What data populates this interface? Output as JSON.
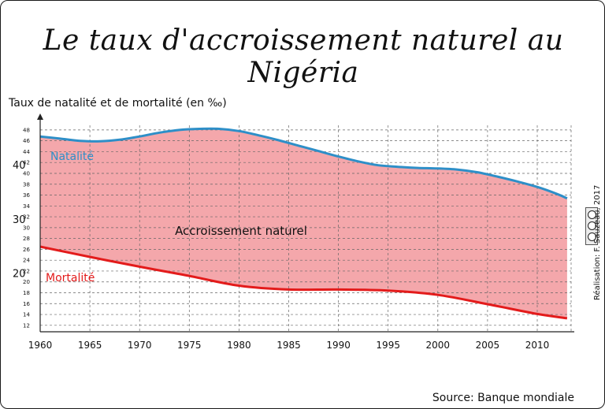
{
  "chart_data": {
    "type": "area",
    "title": "Le taux d'accroissement naturel au Nigéria",
    "ylabel": "Taux de natalité et de mortalité (en ‰)",
    "source": "Source: Banque mondiale",
    "credit": "Réalisation: F. Sauzeau, 2017",
    "xlim": [
      1960,
      2013
    ],
    "ylim": [
      11,
      49
    ],
    "x_ticks": [
      1960,
      1965,
      1970,
      1975,
      1980,
      1985,
      1990,
      1995,
      2000,
      2005,
      2010
    ],
    "y_ticks": [
      12,
      14,
      16,
      18,
      20,
      22,
      24,
      26,
      28,
      30,
      32,
      34,
      36,
      38,
      40,
      42,
      44,
      46,
      48
    ],
    "y_ticks_large": [
      20,
      30,
      40
    ],
    "fill_label": "Accroissement naturel",
    "series": [
      {
        "name": "Natalité",
        "color": "#2e8fc8",
        "x": [
          1960,
          1962,
          1964,
          1966,
          1968,
          1970,
          1972,
          1974,
          1976,
          1978,
          1980,
          1982,
          1984,
          1986,
          1988,
          1990,
          1992,
          1994,
          1996,
          1998,
          2000,
          2002,
          2004,
          2006,
          2008,
          2010,
          2012,
          2013
        ],
        "y": [
          46.8,
          46.4,
          46.0,
          45.9,
          46.2,
          46.8,
          47.5,
          48.0,
          48.2,
          48.2,
          47.8,
          47.0,
          46.1,
          45.1,
          44.1,
          43.1,
          42.2,
          41.5,
          41.2,
          41.0,
          40.9,
          40.7,
          40.2,
          39.4,
          38.5,
          37.5,
          36.2,
          35.4
        ]
      },
      {
        "name": "Mortalité",
        "color": "#e31b1b",
        "x": [
          1960,
          1965,
          1970,
          1975,
          1980,
          1985,
          1990,
          1995,
          2000,
          2005,
          2010,
          2013
        ],
        "y": [
          26.5,
          24.6,
          22.8,
          21.1,
          19.3,
          18.6,
          18.6,
          18.4,
          17.6,
          15.9,
          14.1,
          13.3
        ]
      }
    ],
    "fill_color": "#f4a7ab",
    "grid": true,
    "legend": "inline labels"
  }
}
